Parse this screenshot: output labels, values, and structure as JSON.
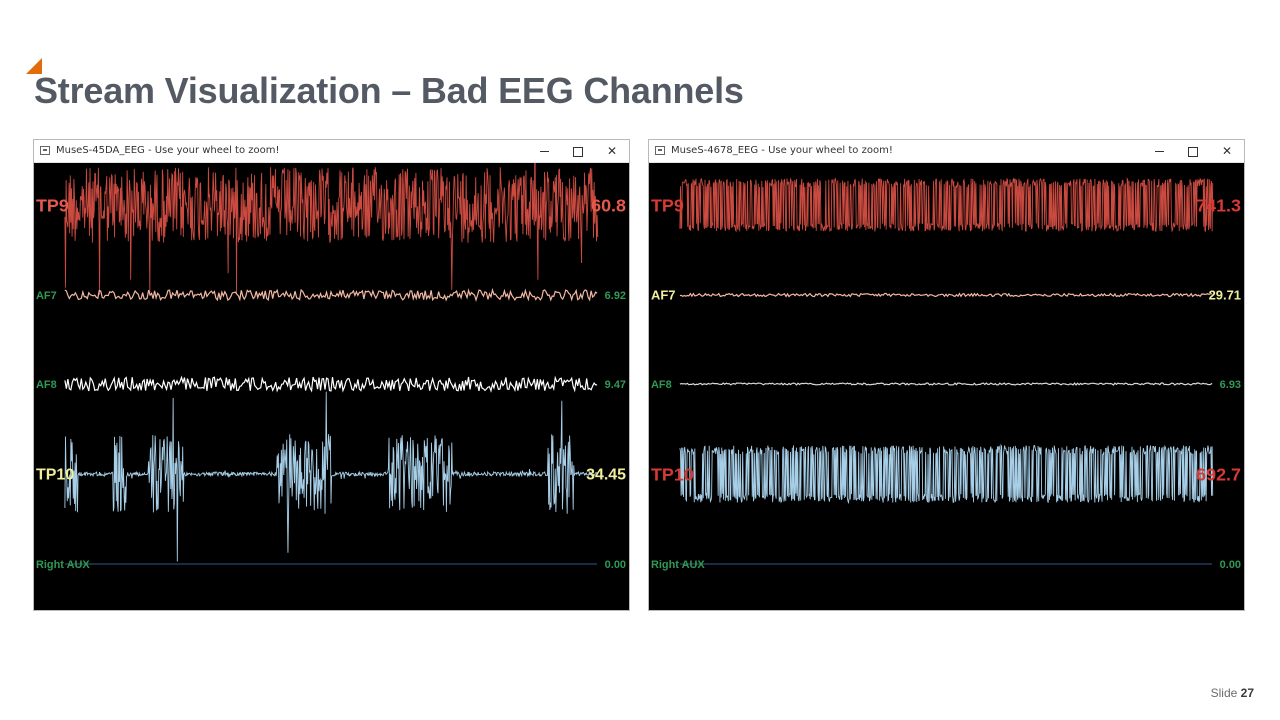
{
  "slide": {
    "title": "Stream Visualization – Bad EEG Channels",
    "slide_label": "Slide",
    "slide_number": "27",
    "accent_color": "#e36c0a"
  },
  "windows": [
    {
      "title": "MuseS-45DA_EEG - Use your wheel to zoom!",
      "controls": {
        "minimize": "minimize-icon",
        "maximize": "maximize-icon",
        "close": "close-icon"
      },
      "channels": [
        {
          "name": "TP9",
          "value": "60.8",
          "color": "#cc4b41",
          "name_color": "#e55a4c",
          "value_color": "#e55a4c"
        },
        {
          "name": "AF7",
          "value": "6.92",
          "color": "#f3b8a3",
          "name_color": "#2e9a55",
          "value_color": "#2e9a55"
        },
        {
          "name": "AF8",
          "value": "9.47",
          "color": "#ffffff",
          "name_color": "#2e9a55",
          "value_color": "#2e9a55"
        },
        {
          "name": "TP10",
          "value": "34.45",
          "color": "#a7cfe8",
          "name_color": "#f2ef9a",
          "value_color": "#f2ef9a"
        },
        {
          "name": "Right AUX",
          "value": "0.00",
          "color": "#2b5a8a",
          "name_color": "#2e9a55",
          "value_color": "#2e9a55"
        }
      ]
    },
    {
      "title": "MuseS-4678_EEG - Use your wheel to zoom!",
      "controls": {
        "minimize": "minimize-icon",
        "maximize": "maximize-icon",
        "close": "close-icon"
      },
      "channels": [
        {
          "name": "TP9",
          "value": "741.3",
          "color": "#cc4b41",
          "name_color": "#d63a34",
          "value_color": "#d63a34"
        },
        {
          "name": "AF7",
          "value": "29.71",
          "color": "#f3b8a3",
          "name_color": "#f2ef9a",
          "value_color": "#f2ef9a"
        },
        {
          "name": "AF8",
          "value": "6.93",
          "color": "#d9d9d9",
          "name_color": "#2e9a55",
          "value_color": "#2e9a55"
        },
        {
          "name": "TP10",
          "value": "692.7",
          "color": "#a7cfe8",
          "name_color": "#d63a34",
          "value_color": "#d63a34"
        },
        {
          "name": "Right AUX",
          "value": "0.00",
          "color": "#2b5a8a",
          "name_color": "#2e9a55",
          "value_color": "#2e9a55"
        }
      ]
    }
  ]
}
